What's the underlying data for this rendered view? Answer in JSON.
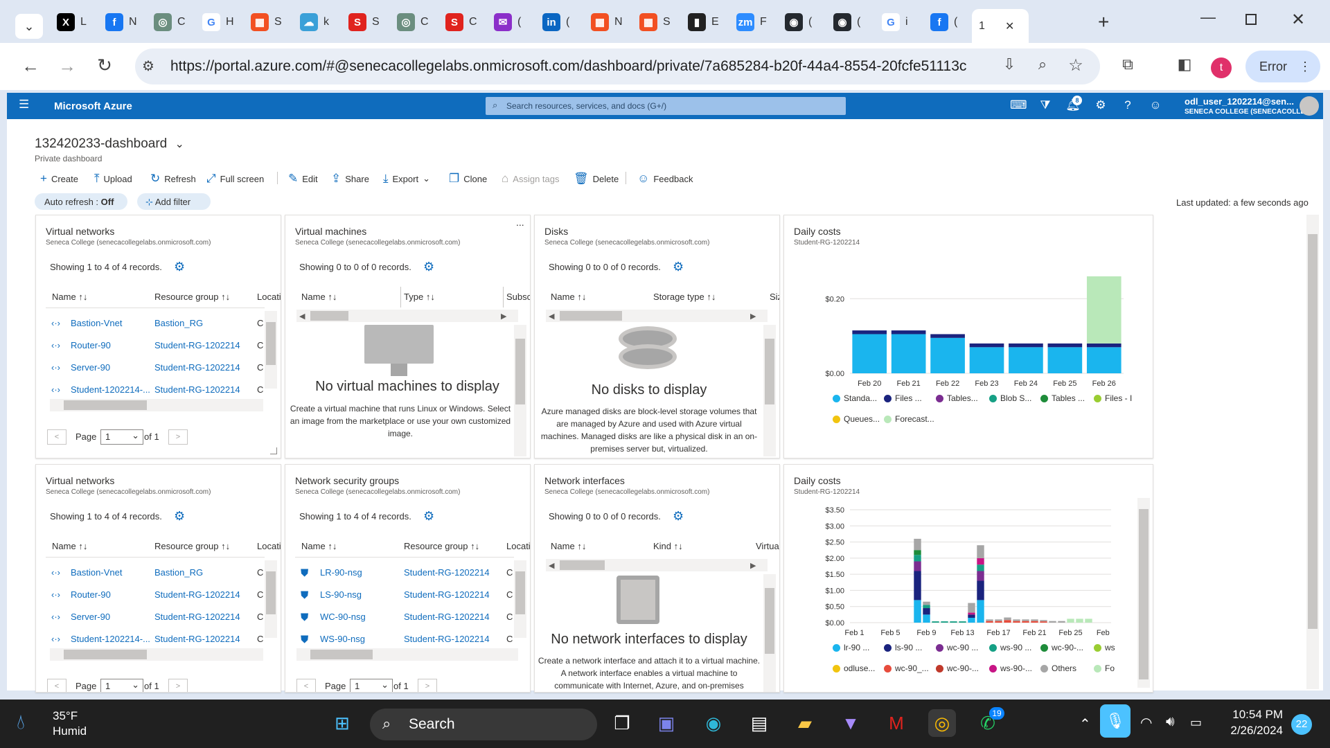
{
  "browser": {
    "tabs": [
      {
        "icon": "x-icon",
        "label": "L",
        "bg": "#000000",
        "glyph": "X"
      },
      {
        "icon": "facebook-icon",
        "label": "N",
        "bg": "#1877f2",
        "glyph": "f"
      },
      {
        "icon": "chatgpt-icon",
        "label": "C",
        "bg": "#6b8e7f",
        "glyph": "◎"
      },
      {
        "icon": "google-icon",
        "label": "H",
        "bg": "#ffffff",
        "glyph": "G"
      },
      {
        "icon": "microsoft-icon",
        "label": "S",
        "bg": "#f25022",
        "glyph": "▦"
      },
      {
        "icon": "cloud-icon",
        "label": "k",
        "bg": "#3aa0d8",
        "glyph": "☁"
      },
      {
        "icon": "s-icon",
        "label": "S",
        "bg": "#e0231e",
        "glyph": "S"
      },
      {
        "icon": "chatgpt-icon",
        "label": "C",
        "bg": "#6b8e7f",
        "glyph": "◎"
      },
      {
        "icon": "s-circle-icon",
        "label": "C",
        "bg": "#e0231e",
        "glyph": "S"
      },
      {
        "icon": "mail-icon",
        "label": "(",
        "bg": "#8b2fc9",
        "glyph": "✉"
      },
      {
        "icon": "linkedin-icon",
        "label": "(",
        "bg": "#0a66c2",
        "glyph": "in"
      },
      {
        "icon": "microsoft-icon",
        "label": "N",
        "bg": "#f25022",
        "glyph": "▦"
      },
      {
        "icon": "microsoft-icon",
        "label": "S",
        "bg": "#f25022",
        "glyph": "▦"
      },
      {
        "icon": "chart-icon",
        "label": "E",
        "bg": "#222222",
        "glyph": "▮"
      },
      {
        "icon": "zm-icon",
        "label": "F",
        "bg": "#2d8cff",
        "glyph": "zm"
      },
      {
        "icon": "github-icon",
        "label": "(",
        "bg": "#24292f",
        "glyph": "◉"
      },
      {
        "icon": "github-icon",
        "label": "(",
        "bg": "#24292f",
        "glyph": "◉"
      },
      {
        "icon": "google-icon",
        "label": "i",
        "bg": "#ffffff",
        "glyph": "G"
      },
      {
        "icon": "facebook-icon",
        "label": "(",
        "bg": "#1877f2",
        "glyph": "f"
      },
      {
        "icon": "",
        "label": "1",
        "bg": "#ffffff",
        "glyph": ""
      }
    ],
    "close_tab": "✕",
    "new_tab": "+",
    "url": "https://portal.azure.com/#@senecacollegelabs.onmicrosoft.com/dashboard/private/7a685284-b20f-44a4-8554-20fcfe51113c",
    "profile_letter": "t",
    "error_label": "Error"
  },
  "azure": {
    "brand": "Microsoft Azure",
    "search_placeholder": "Search resources, services, and docs (G+/)",
    "notification_count": "8",
    "user_name": "odl_user_1202214@sen...",
    "user_org": "SENECA COLLEGE (SENECACOLLE..."
  },
  "dashboard": {
    "title": "132420233-dashboard",
    "subtitle": "Private dashboard",
    "commands": [
      {
        "icon": "plus-icon",
        "label": "Create"
      },
      {
        "icon": "upload-icon",
        "label": "Upload"
      },
      {
        "icon": "refresh-icon",
        "label": "Refresh"
      },
      {
        "icon": "fullscreen-icon",
        "label": "Full screen"
      },
      {
        "icon": "edit-icon",
        "label": "Edit"
      },
      {
        "icon": "share-icon",
        "label": "Share"
      },
      {
        "icon": "export-icon",
        "label": "Export"
      },
      {
        "icon": "clone-icon",
        "label": "Clone"
      },
      {
        "icon": "tag-icon",
        "label": "Assign tags"
      },
      {
        "icon": "delete-icon",
        "label": "Delete"
      },
      {
        "icon": "feedback-icon",
        "label": "Feedback"
      }
    ],
    "auto_refresh_label": "Auto refresh : ",
    "auto_refresh_value": "Off",
    "add_filter": "Add filter",
    "last_updated": "Last updated: a few seconds ago"
  },
  "tiles": {
    "vnet1": {
      "title": "Virtual networks",
      "org": "Seneca College (senecacollegelabs.onmicrosoft.com)",
      "records": "Showing 1 to 4 of 4 records.",
      "cols": [
        "Name",
        "Resource group",
        "Locati"
      ],
      "rows": [
        {
          "name": "Bastion-Vnet",
          "rg": "Bastion_RG",
          "loc": "C"
        },
        {
          "name": "Router-90",
          "rg": "Student-RG-1202214",
          "loc": "C"
        },
        {
          "name": "Server-90",
          "rg": "Student-RG-1202214",
          "loc": "C"
        },
        {
          "name": "Student-1202214-...",
          "rg": "Student-RG-1202214",
          "loc": "C"
        }
      ],
      "page_label": "Page",
      "page_value": "1",
      "of_label": "of 1"
    },
    "vm": {
      "title": "Virtual machines",
      "org": "Seneca College (senecacollegelabs.onmicrosoft.com)",
      "records": "Showing 0 to 0 of 0 records.",
      "cols": [
        "Name",
        "Type",
        "Subsc"
      ],
      "empty_title": "No virtual machines to display",
      "empty_desc": "Create a virtual machine that runs Linux or Windows. Select an image from the marketplace or use your own customized image.",
      "more": "..."
    },
    "disks": {
      "title": "Disks",
      "org": "Seneca College (senecacollegelabs.onmicrosoft.com)",
      "records": "Showing 0 to 0 of 0 records.",
      "cols": [
        "Name",
        "Storage type",
        "Siz"
      ],
      "empty_title": "No disks to display",
      "empty_desc": "Azure managed disks are block-level storage volumes that are managed by Azure and used with Azure virtual machines. Managed disks are like a physical disk in an on-premises server but, virtualized."
    },
    "cost1": {
      "title": "Daily costs",
      "sub": "Student-RG-1202214",
      "legend": [
        {
          "label": "Standa...",
          "color": "#1ab5ee"
        },
        {
          "label": "Files ...",
          "color": "#1a237e"
        },
        {
          "label": "Tables...",
          "color": "#7b2d91"
        },
        {
          "label": "Blob S...",
          "color": "#16a085"
        },
        {
          "label": "Tables ...",
          "color": "#1e8c3a"
        },
        {
          "label": "Files - I",
          "color": "#9acd32"
        },
        {
          "label": "Queues...",
          "color": "#f1c40f"
        },
        {
          "label": "Forecast...",
          "color": "#b9e8b9"
        }
      ]
    },
    "vnet2": {
      "title": "Virtual networks",
      "org": "Seneca College (senecacollegelabs.onmicrosoft.com)",
      "records": "Showing 1 to 4 of 4 records.",
      "cols": [
        "Name",
        "Resource group",
        "Locati"
      ],
      "rows": [
        {
          "name": "Bastion-Vnet",
          "rg": "Bastion_RG",
          "loc": "C"
        },
        {
          "name": "Router-90",
          "rg": "Student-RG-1202214",
          "loc": "C"
        },
        {
          "name": "Server-90",
          "rg": "Student-RG-1202214",
          "loc": "C"
        },
        {
          "name": "Student-1202214-...",
          "rg": "Student-RG-1202214",
          "loc": "C"
        }
      ],
      "page_label": "Page",
      "page_value": "1",
      "of_label": "of 1"
    },
    "nsg": {
      "title": "Network security groups",
      "org": "Seneca College (senecacollegelabs.onmicrosoft.com)",
      "records": "Showing 1 to 4 of 4 records.",
      "cols": [
        "Name",
        "Resource group",
        "Locati"
      ],
      "rows": [
        {
          "name": "LR-90-nsg",
          "rg": "Student-RG-1202214",
          "loc": "C"
        },
        {
          "name": "LS-90-nsg",
          "rg": "Student-RG-1202214",
          "loc": "C"
        },
        {
          "name": "WC-90-nsg",
          "rg": "Student-RG-1202214",
          "loc": "C"
        },
        {
          "name": "WS-90-nsg",
          "rg": "Student-RG-1202214",
          "loc": "C"
        }
      ],
      "page_label": "Page",
      "page_value": "1",
      "of_label": "of 1"
    },
    "nic": {
      "title": "Network interfaces",
      "org": "Seneca College (senecacollegelabs.onmicrosoft.com)",
      "records": "Showing 0 to 0 of 0 records.",
      "cols": [
        "Name",
        "Kind",
        "Virtua"
      ],
      "empty_title": "No network interfaces to display",
      "empty_desc": "Create a network interface and attach it to a virtual machine. A network interface enables a virtual machine to communicate with Internet, Azure, and on-premises"
    },
    "cost2": {
      "title": "Daily costs",
      "sub": "Student-RG-1202214",
      "legend": [
        {
          "label": "lr-90 ...",
          "color": "#1ab5ee"
        },
        {
          "label": "ls-90 ...",
          "color": "#1a237e"
        },
        {
          "label": "wc-90 ...",
          "color": "#7b2d91"
        },
        {
          "label": "ws-90 ...",
          "color": "#16a085"
        },
        {
          "label": "wc-90-...",
          "color": "#1e8c3a"
        },
        {
          "label": "ws",
          "color": "#9acd32"
        },
        {
          "label": "odluse...",
          "color": "#f1c40f"
        },
        {
          "label": "wc-90_...",
          "color": "#e74c3c"
        },
        {
          "label": "wc-90-...",
          "color": "#c0392b"
        },
        {
          "label": "ws-90-...",
          "color": "#c71585"
        },
        {
          "label": "Others",
          "color": "#a6a6a6"
        },
        {
          "label": "Fo",
          "color": "#b9e8b9"
        }
      ]
    }
  },
  "chart_data": [
    {
      "type": "bar",
      "title": "Daily costs",
      "subtitle": "Student-RG-1202214",
      "categories": [
        "Feb 20",
        "Feb 21",
        "Feb 22",
        "Feb 23",
        "Feb 24",
        "Feb 25",
        "Feb 26"
      ],
      "y_ticks": [
        "$0.00",
        "$0.20"
      ],
      "ylim": [
        0,
        0.26
      ],
      "series": [
        {
          "name": "Standa...",
          "color": "#1ab5ee",
          "values": [
            0.105,
            0.105,
            0.095,
            0.07,
            0.07,
            0.07,
            0.07
          ]
        },
        {
          "name": "Files ...",
          "color": "#1a237e",
          "values": [
            0.01,
            0.01,
            0.01,
            0.01,
            0.01,
            0.01,
            0.01
          ]
        },
        {
          "name": "Forecast...",
          "color": "#b9e8b9",
          "values": [
            0,
            0,
            0,
            0,
            0,
            0,
            0.18
          ]
        }
      ]
    },
    {
      "type": "bar",
      "title": "Daily costs",
      "subtitle": "Student-RG-1202214",
      "x_ticks": [
        "Feb 1",
        "Feb 5",
        "Feb 9",
        "Feb 13",
        "Feb 17",
        "Feb 21",
        "Feb 25",
        "Feb"
      ],
      "y_ticks": [
        "$0.00",
        "$0.50",
        "$1.00",
        "$1.50",
        "$2.00",
        "$2.50",
        "$3.00",
        "$3.50"
      ],
      "ylim": [
        0,
        3.5
      ],
      "stacks": [
        {
          "x": 8,
          "parts": [
            {
              "c": "#1ab5ee",
              "v": 0.7
            },
            {
              "c": "#1a237e",
              "v": 0.9
            },
            {
              "c": "#7b2d91",
              "v": 0.3
            },
            {
              "c": "#16a085",
              "v": 0.2
            },
            {
              "c": "#1e8c3a",
              "v": 0.15
            },
            {
              "c": "#a6a6a6",
              "v": 0.35
            }
          ]
        },
        {
          "x": 9,
          "parts": [
            {
              "c": "#1ab5ee",
              "v": 0.25
            },
            {
              "c": "#1a237e",
              "v": 0.2
            },
            {
              "c": "#16a085",
              "v": 0.1
            },
            {
              "c": "#a6a6a6",
              "v": 0.1
            }
          ]
        },
        {
          "x": 10,
          "parts": [
            {
              "c": "#16a085",
              "v": 0.04
            }
          ]
        },
        {
          "x": 11,
          "parts": [
            {
              "c": "#16a085",
              "v": 0.04
            }
          ]
        },
        {
          "x": 12,
          "parts": [
            {
              "c": "#16a085",
              "v": 0.04
            }
          ]
        },
        {
          "x": 13,
          "parts": [
            {
              "c": "#16a085",
              "v": 0.04
            }
          ]
        },
        {
          "x": 14,
          "parts": [
            {
              "c": "#1ab5ee",
              "v": 0.15
            },
            {
              "c": "#1a237e",
              "v": 0.1
            },
            {
              "c": "#c71585",
              "v": 0.06
            },
            {
              "c": "#a6a6a6",
              "v": 0.3
            }
          ]
        },
        {
          "x": 15,
          "parts": [
            {
              "c": "#1ab5ee",
              "v": 0.7
            },
            {
              "c": "#1a237e",
              "v": 0.6
            },
            {
              "c": "#7b2d91",
              "v": 0.3
            },
            {
              "c": "#16a085",
              "v": 0.2
            },
            {
              "c": "#c71585",
              "v": 0.2
            },
            {
              "c": "#a6a6a6",
              "v": 0.4
            }
          ]
        },
        {
          "x": 16,
          "parts": [
            {
              "c": "#e74c3c",
              "v": 0.05
            },
            {
              "c": "#a6a6a6",
              "v": 0.05
            }
          ]
        },
        {
          "x": 17,
          "parts": [
            {
              "c": "#e74c3c",
              "v": 0.05
            },
            {
              "c": "#a6a6a6",
              "v": 0.05
            }
          ]
        },
        {
          "x": 18,
          "parts": [
            {
              "c": "#e74c3c",
              "v": 0.08
            },
            {
              "c": "#a6a6a6",
              "v": 0.08
            }
          ]
        },
        {
          "x": 19,
          "parts": [
            {
              "c": "#e74c3c",
              "v": 0.05
            },
            {
              "c": "#a6a6a6",
              "v": 0.05
            }
          ]
        },
        {
          "x": 20,
          "parts": [
            {
              "c": "#e74c3c",
              "v": 0.05
            },
            {
              "c": "#a6a6a6",
              "v": 0.05
            }
          ]
        },
        {
          "x": 21,
          "parts": [
            {
              "c": "#e74c3c",
              "v": 0.05
            },
            {
              "c": "#a6a6a6",
              "v": 0.05
            }
          ]
        },
        {
          "x": 22,
          "parts": [
            {
              "c": "#e74c3c",
              "v": 0.04
            },
            {
              "c": "#a6a6a6",
              "v": 0.04
            }
          ]
        },
        {
          "x": 23,
          "parts": [
            {
              "c": "#a6a6a6",
              "v": 0.05
            }
          ]
        },
        {
          "x": 24,
          "parts": [
            {
              "c": "#a6a6a6",
              "v": 0.05
            }
          ]
        },
        {
          "x": 25,
          "parts": [
            {
              "c": "#b9e8b9",
              "v": 0.12
            }
          ]
        },
        {
          "x": 26,
          "parts": [
            {
              "c": "#b9e8b9",
              "v": 0.12
            }
          ]
        },
        {
          "x": 27,
          "parts": [
            {
              "c": "#b9e8b9",
              "v": 0.12
            }
          ]
        }
      ]
    }
  ],
  "taskbar": {
    "weather_temp": "35°F",
    "weather_desc": "Humid",
    "search_label": "Search",
    "whatsapp_badge": "19",
    "time": "10:54 PM",
    "date": "2/26/2024",
    "notif_count": "22"
  }
}
